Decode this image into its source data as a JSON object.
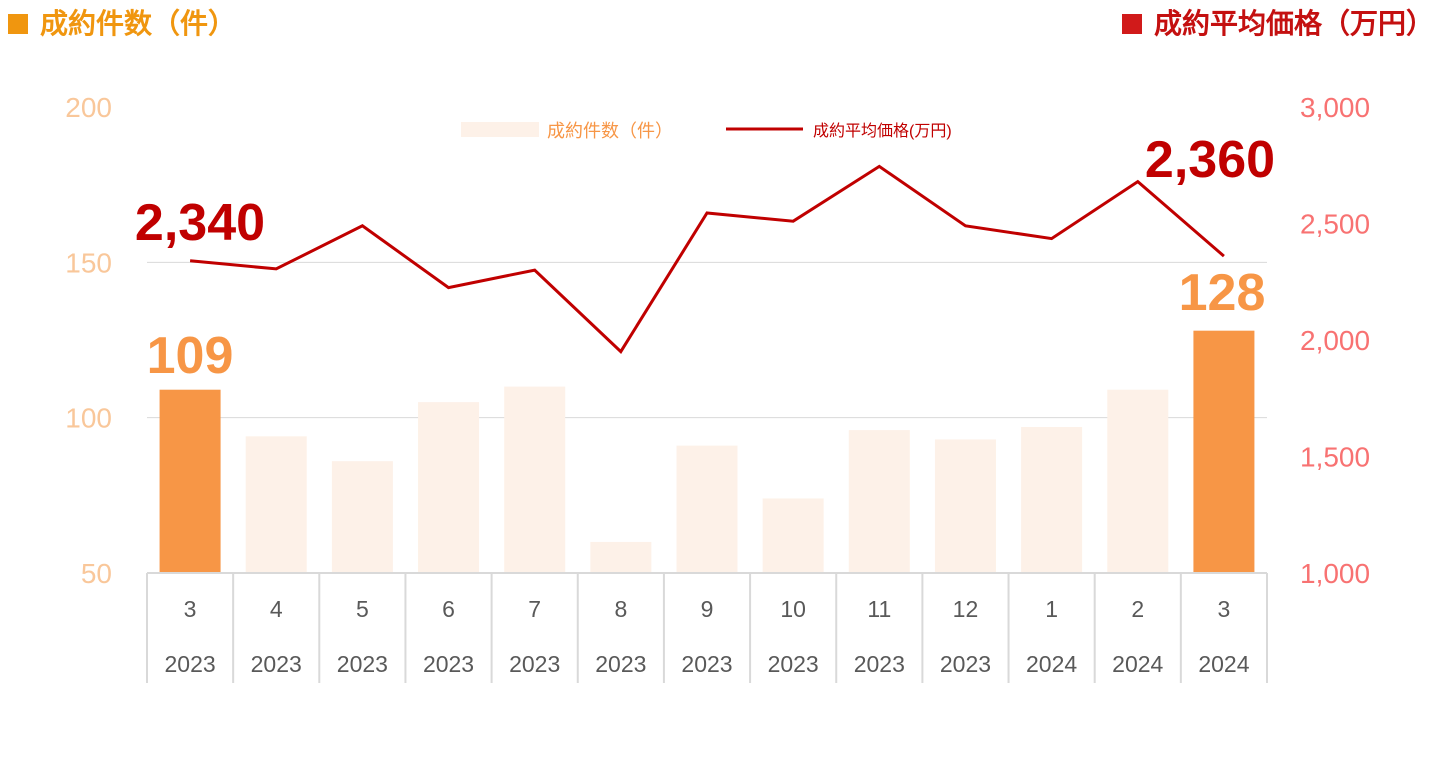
{
  "titles": {
    "left": "成約件数（件）",
    "right": "成約平均価格（万円）"
  },
  "colors": {
    "bar_highlight": "#f79646",
    "bar_muted": "#fdf1e8",
    "line": "#c00000",
    "left_axis": "#f9c79a",
    "right_axis": "#f87272",
    "left_title": "#f0960f",
    "right_title": "#c41010",
    "grid": "#d9d9d9",
    "x_tick": "#595959"
  },
  "chart_data": {
    "type": "bar+line",
    "categories": [
      [
        "3",
        "2023"
      ],
      [
        "4",
        "2023"
      ],
      [
        "5",
        "2023"
      ],
      [
        "6",
        "2023"
      ],
      [
        "7",
        "2023"
      ],
      [
        "8",
        "2023"
      ],
      [
        "9",
        "2023"
      ],
      [
        "10",
        "2023"
      ],
      [
        "11",
        "2023"
      ],
      [
        "12",
        "2023"
      ],
      [
        "1",
        "2024"
      ],
      [
        "2",
        "2024"
      ],
      [
        "3",
        "2024"
      ]
    ],
    "series": [
      {
        "name": "成約件数（件）",
        "type": "bar",
        "axis": "left",
        "values": [
          109,
          94,
          86,
          105,
          110,
          60,
          91,
          74,
          96,
          93,
          97,
          109,
          128
        ],
        "highlight_indices": [
          0,
          12
        ]
      },
      {
        "name": "成約平均価格(万円)",
        "type": "line",
        "axis": "right",
        "values": [
          2340,
          2305,
          2490,
          2225,
          2300,
          1950,
          2545,
          2510,
          2745,
          2490,
          2435,
          2680,
          2360
        ]
      }
    ],
    "y_left": {
      "min": 50,
      "max": 200,
      "ticks": [
        "50",
        "100",
        "150",
        "200"
      ]
    },
    "y_right": {
      "min": 1000,
      "max": 3000,
      "ticks": [
        "1,000",
        "1,500",
        "2,000",
        "2,500",
        "3,000"
      ]
    },
    "data_labels": [
      {
        "series": 0,
        "index": 0,
        "text": "109"
      },
      {
        "series": 0,
        "index": 12,
        "text": "128"
      },
      {
        "series": 1,
        "index": 0,
        "text": "2,340"
      },
      {
        "series": 1,
        "index": 12,
        "text": "2,360"
      }
    ],
    "legend": {
      "position": "top-center",
      "items": [
        {
          "label": "成約件数（件）",
          "kind": "bar"
        },
        {
          "label": "成約平均価格(万円)",
          "kind": "line"
        }
      ]
    },
    "grid": true
  }
}
